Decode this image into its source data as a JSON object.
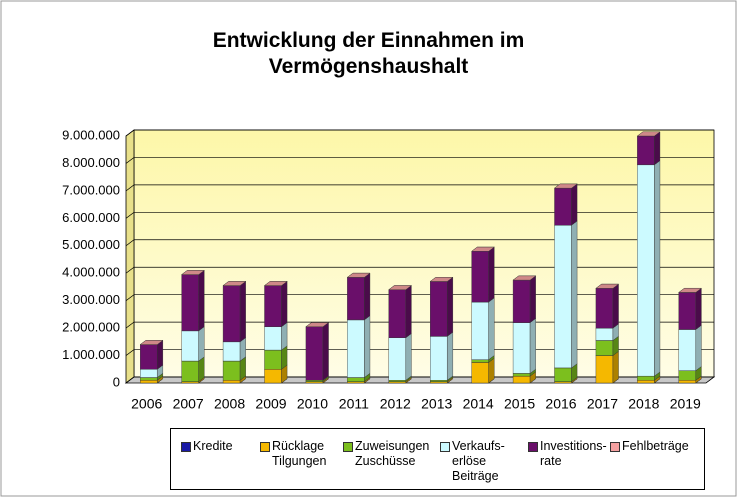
{
  "chart_data": {
    "type": "bar",
    "stacked": true,
    "title": "Entwicklung der Einnahmen im\nVermögenshaushalt",
    "categories": [
      "2006",
      "2007",
      "2008",
      "2009",
      "2010",
      "2011",
      "2012",
      "2013",
      "2014",
      "2015",
      "2016",
      "2017",
      "2018",
      "2019"
    ],
    "series": [
      {
        "name": "Kredite",
        "color": "#1a1aa6",
        "values": [
          0,
          0,
          0,
          0,
          0,
          0,
          0,
          0,
          0,
          0,
          0,
          0,
          0,
          0
        ]
      },
      {
        "name": "Rücklage\nTilgungen",
        "color": "#f5b800",
        "values": [
          100000,
          50000,
          100000,
          500000,
          50000,
          50000,
          50000,
          50000,
          750000,
          250000,
          50000,
          1000000,
          100000,
          100000
        ]
      },
      {
        "name": "Zuweisungen\nZuschüsse",
        "color": "#7cbf1e",
        "values": [
          100000,
          750000,
          700000,
          700000,
          50000,
          150000,
          50000,
          50000,
          100000,
          100000,
          500000,
          550000,
          150000,
          350000
        ]
      },
      {
        "name": "Verkaufs-\nerlöse\nBeiträge",
        "color": "#ccfaff",
        "values": [
          300000,
          1100000,
          700000,
          850000,
          0,
          2100000,
          1550000,
          1600000,
          2100000,
          1850000,
          5200000,
          450000,
          7700000,
          1500000
        ]
      },
      {
        "name": "Investitions-\nrate",
        "color": "#6a0f6a",
        "values": [
          900000,
          2050000,
          2050000,
          1500000,
          1950000,
          1550000,
          1750000,
          2000000,
          1850000,
          1550000,
          1350000,
          1450000,
          1050000,
          1350000
        ]
      },
      {
        "name": "Fehlbeträge",
        "color": "#f4a0a0",
        "values": [
          0,
          0,
          0,
          0,
          0,
          0,
          0,
          0,
          0,
          0,
          0,
          0,
          0,
          0
        ]
      }
    ],
    "ylim": [
      0,
      9000000
    ],
    "yticks": [
      0,
      {
        "value": 1000000,
        "label": "1.000.000"
      },
      {
        "value": 2000000,
        "label": "2.000.000"
      },
      {
        "value": 3000000,
        "label": "3.000.000"
      },
      {
        "value": 4000000,
        "label": "4.000.000"
      },
      {
        "value": 5000000,
        "label": "5.000.000"
      },
      {
        "value": 6000000,
        "label": "6.000.000"
      },
      {
        "value": 7000000,
        "label": "7.000.000"
      },
      {
        "value": 8000000,
        "label": "8.000.000"
      },
      {
        "value": 9000000,
        "label": "9.000.000"
      }
    ],
    "grid": true
  }
}
